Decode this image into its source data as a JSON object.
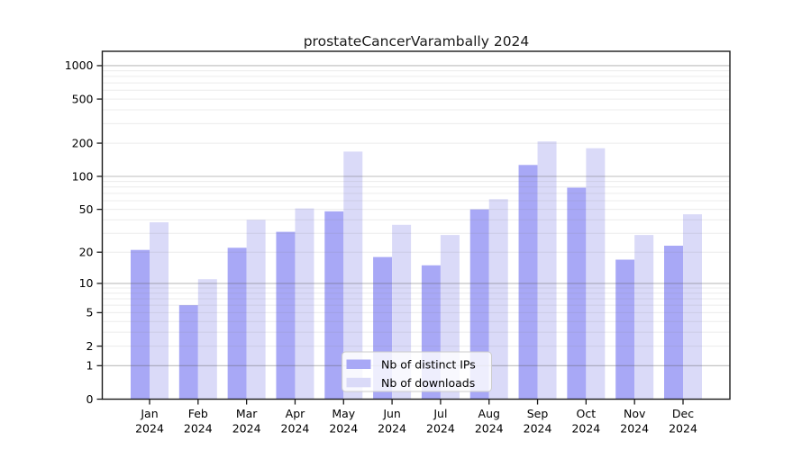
{
  "chart_data": {
    "type": "bar",
    "title": "prostateCancerVarambally 2024",
    "categories": [
      "Jan",
      "Feb",
      "Mar",
      "Apr",
      "May",
      "Jun",
      "Jul",
      "Aug",
      "Sep",
      "Oct",
      "Nov",
      "Dec"
    ],
    "category_second_line": "2024",
    "series": [
      {
        "name": "Nb of distinct IPs",
        "color": "#a8a8f6",
        "values": [
          21,
          6,
          22,
          31,
          48,
          18,
          15,
          50,
          127,
          79,
          17,
          23
        ]
      },
      {
        "name": "Nb of downloads",
        "color": "#dadaf8",
        "values": [
          38,
          11,
          40,
          51,
          168,
          36,
          29,
          62,
          207,
          180,
          29,
          45
        ]
      }
    ],
    "xlabel": "",
    "ylabel": "",
    "y_axis": {
      "scale": "log1p",
      "tick_values": [
        0,
        1,
        2,
        5,
        10,
        20,
        50,
        100,
        200,
        500,
        1000
      ],
      "tick_labels": [
        "0",
        "1",
        "2",
        "5",
        "10",
        "20",
        "50",
        "100",
        "200",
        "500",
        "1000"
      ],
      "major_gridline_values": [
        1,
        10,
        100,
        1000
      ],
      "ylim": [
        0,
        1360
      ]
    },
    "grid": "horizontal",
    "legend": {
      "position": "lower-center",
      "entries": [
        "Nb of distinct IPs",
        "Nb of downloads"
      ]
    },
    "colors": {
      "axis": "#1a1a1a",
      "major_grid": "rgba(96,96,96,0.42)",
      "minor_grid": "rgba(128,128,128,0.15)",
      "legend_border": "#cccccc",
      "legend_background": "rgba(255,255,255,0.8)"
    }
  }
}
